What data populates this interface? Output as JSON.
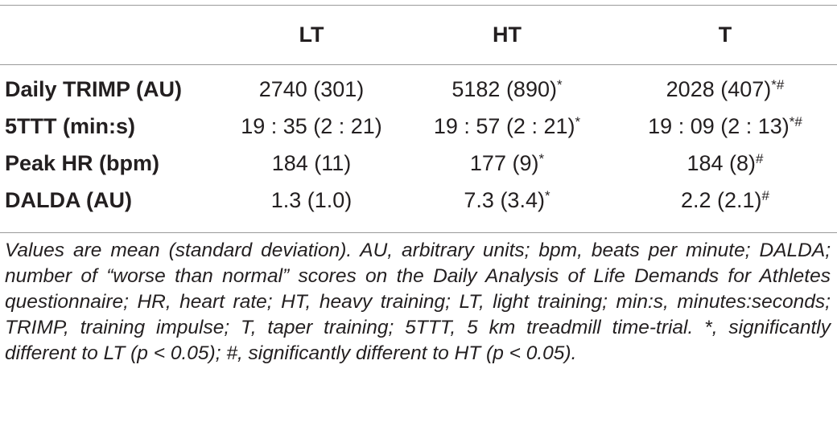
{
  "table": {
    "columns": [
      "",
      "LT",
      "HT",
      "T"
    ],
    "rows": [
      {
        "label": "Daily TRIMP (AU)",
        "cells": [
          {
            "value": "2740 (301)",
            "mark": ""
          },
          {
            "value": "5182 (890)",
            "mark": "*"
          },
          {
            "value": "2028 (407)",
            "mark": "*#"
          }
        ]
      },
      {
        "label": "5TTT (min:s)",
        "cells": [
          {
            "value": "19 : 35 (2 : 21)",
            "mark": ""
          },
          {
            "value": "19 : 57 (2 : 21)",
            "mark": "*"
          },
          {
            "value": "19 : 09 (2 : 13)",
            "mark": "*#"
          }
        ]
      },
      {
        "label": "Peak HR (bpm)",
        "cells": [
          {
            "value": "184 (11)",
            "mark": ""
          },
          {
            "value": "177 (9)",
            "mark": "*"
          },
          {
            "value": "184 (8)",
            "mark": "#"
          }
        ]
      },
      {
        "label": "DALDA (AU)",
        "cells": [
          {
            "value": "1.3 (1.0)",
            "mark": ""
          },
          {
            "value": "7.3 (3.4)",
            "mark": "*"
          },
          {
            "value": "2.2 (2.1)",
            "mark": "#"
          }
        ]
      }
    ],
    "footnote": "Values are mean (standard deviation). AU, arbitrary units; bpm, beats per minute; DALDA; number of “worse than normal” scores on the Daily Analysis of Life Demands for Athletes questionnaire; HR, heart rate; HT, heavy training; LT, light training; min:s, minutes:seconds; TRIMP, training impulse; T, taper training; 5TTT, 5 km treadmill time-trial. *, significantly different to LT (p < 0.05); #, significantly different to HT (p < 0.05)."
  }
}
